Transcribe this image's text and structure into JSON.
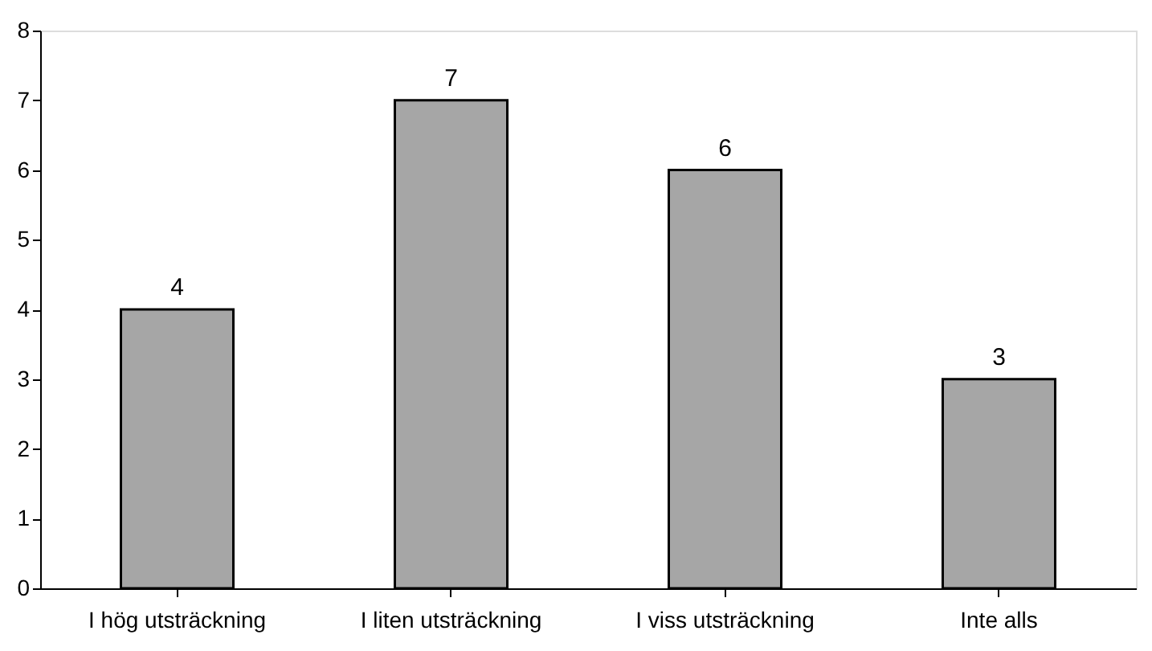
{
  "chart_data": {
    "type": "bar",
    "categories": [
      "I hög utsträckning",
      "I liten utsträckning",
      "I viss utsträckning",
      "Inte alls"
    ],
    "values": [
      4,
      7,
      6,
      3
    ],
    "color": "#a6a6a6",
    "ylim": [
      0,
      8
    ],
    "yticks": [
      0,
      1,
      2,
      3,
      4,
      5,
      6,
      7,
      8
    ],
    "grid": false,
    "data_labels": true
  }
}
